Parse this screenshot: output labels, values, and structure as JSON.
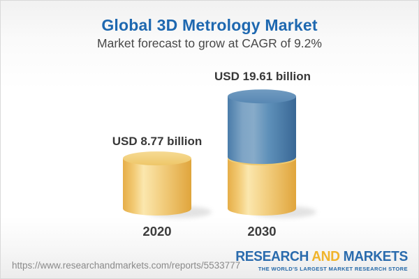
{
  "header": {
    "title": "Global 3D Metrology Market",
    "subtitle": "Market forecast to grow at CAGR of 9.2%"
  },
  "chart_data": {
    "type": "bar",
    "bar_style": "3d-cylinder",
    "categories": [
      "2020",
      "2030"
    ],
    "values": [
      8.77,
      19.61
    ],
    "value_labels": [
      "USD 8.77 billion",
      "USD 19.61 billion"
    ],
    "unit": "USD billion",
    "title": "Global 3D Metrology Market",
    "subtitle": "Market forecast to grow at CAGR of 9.2%",
    "cagr_pct": 9.2,
    "series": [
      {
        "name": "2020 base value",
        "values": [
          8.77,
          8.77
        ],
        "color": "#F0C469"
      },
      {
        "name": "growth to 2030",
        "values": [
          0,
          10.84
        ],
        "color": "#4E81AF"
      }
    ],
    "legend_position": "none",
    "axes": "none",
    "grid": false
  },
  "colors": {
    "title_blue": "#1E68B0",
    "bar_yellow": "#F0C469",
    "bar_blue": "#4E81AF",
    "label_dark": "#383838",
    "url_gray": "#8A8A8A",
    "logo_blue": "#2A6BAD",
    "logo_gold": "#F0B42C"
  },
  "footer": {
    "url": "https://www.researchandmarkets.com/reports/5533777",
    "logo": {
      "part1": "RESEARCH",
      "part2": "AND",
      "part3": "MARKETS",
      "tagline": "THE WORLD'S LARGEST MARKET RESEARCH STORE"
    }
  }
}
